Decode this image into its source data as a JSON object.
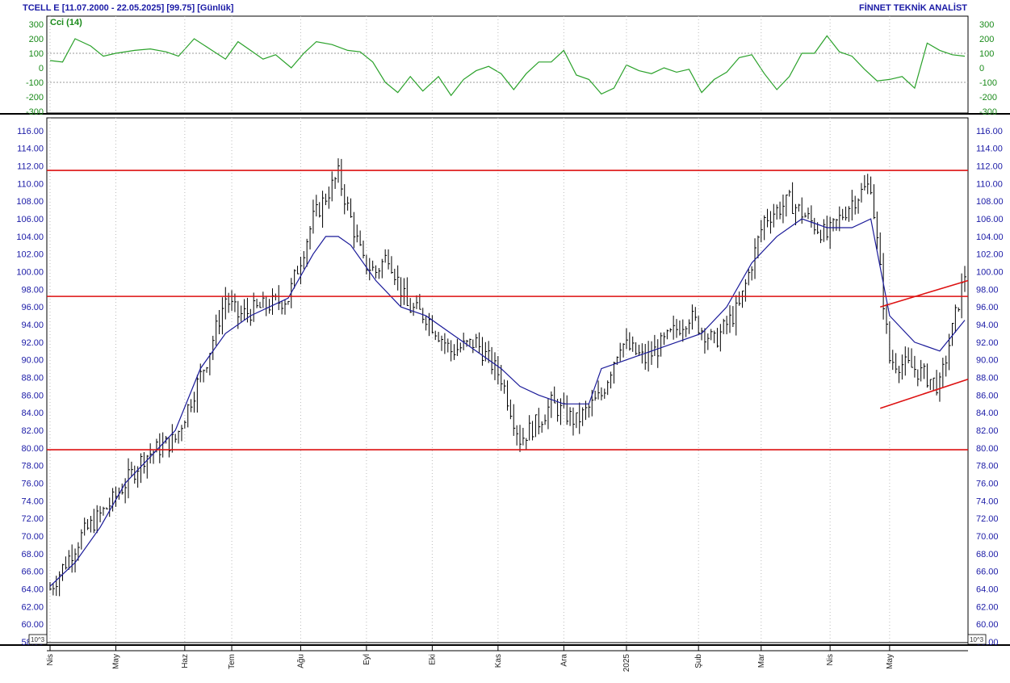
{
  "header": {
    "left": "TCELL E  [11.07.2000 - 22.05.2025]  [99.75]  [Günlük]",
    "right": "FİNNET TEKNİK ANALİST"
  },
  "cci_panel": {
    "label": "Cci (14)",
    "ticks": [
      "300",
      "200",
      "100",
      "0",
      "-100",
      "-200",
      "-300"
    ],
    "line_color": "#2aa12a"
  },
  "price_panel": {
    "ticks": [
      "116.00",
      "114.00",
      "112.00",
      "110.00",
      "108.00",
      "106.00",
      "104.00",
      "102.00",
      "100.00",
      "98.00",
      "96.00",
      "94.00",
      "92.00",
      "90.00",
      "88.00",
      "86.00",
      "84.00",
      "82.00",
      "80.00",
      "78.00",
      "76.00",
      "74.00",
      "72.00",
      "70.00",
      "68.00",
      "66.00",
      "64.00",
      "62.00",
      "60.00",
      "58.00"
    ],
    "scale_marker": "10^3"
  },
  "x_axis": {
    "labels": [
      "Nis",
      "May",
      "Haz",
      "Tem",
      "Ağu",
      "Eyl",
      "Eki",
      "Kas",
      "Ara",
      "2025",
      "Şub",
      "Mar",
      "Nis",
      "May"
    ]
  },
  "colors": {
    "price_bars": "#000000",
    "moving_average": "#1a1a99",
    "support_resistance": "#dd1111",
    "grid": "#bbbbbb",
    "text_blue": "#1a1aa6",
    "text_green": "#1a8a1a"
  },
  "chart_data": [
    {
      "type": "line",
      "name": "Cci (14)",
      "ylim": [
        -300,
        300
      ],
      "reference_lines": [
        100,
        -100
      ],
      "x_index": [
        0,
        4,
        8,
        13,
        17,
        21,
        27,
        32,
        37,
        41,
        46,
        51,
        56,
        60,
        64,
        68,
        72,
        77,
        81,
        85,
        90,
        95,
        99,
        103,
        107,
        111,
        115,
        119,
        124,
        128,
        132,
        136,
        140,
        144,
        148,
        152,
        156,
        160,
        164,
        168,
        172,
        176,
        180,
        184,
        188,
        192,
        196,
        200,
        204,
        208,
        212,
        216,
        220,
        224,
        228,
        232,
        236,
        240,
        244,
        248,
        252,
        256,
        260,
        264,
        268,
        272,
        276,
        280,
        284,
        288,
        292
      ],
      "y": [
        50,
        40,
        200,
        150,
        80,
        100,
        120,
        130,
        110,
        80,
        200,
        130,
        60,
        180,
        120,
        60,
        90,
        0,
        100,
        180,
        160,
        120,
        110,
        40,
        -100,
        -170,
        -60,
        -160,
        -60,
        -190,
        -80,
        -20,
        10,
        -40,
        -150,
        -40,
        40,
        40,
        120,
        -50,
        -80,
        -180,
        -140,
        20,
        -20,
        -40,
        0,
        -30,
        -10,
        -170,
        -80,
        -30,
        70,
        90,
        -40,
        -150,
        -60,
        100,
        100,
        220,
        110,
        80,
        -10,
        -90,
        -80,
        -60,
        -140,
        170,
        120,
        90,
        80
      ]
    },
    {
      "type": "bar",
      "name": "TCELL E",
      "ylim": [
        58,
        117
      ],
      "index_range": [
        0,
        292
      ],
      "close_anchor_index": [
        0,
        10,
        20,
        30,
        40,
        50,
        56,
        60,
        68,
        76,
        84,
        92,
        100,
        104,
        108,
        114,
        120,
        128,
        136,
        144,
        150,
        156,
        160,
        168,
        176,
        182,
        190,
        196,
        204,
        212,
        220,
        228,
        236,
        242,
        248,
        256,
        262,
        268,
        276,
        284,
        292
      ],
      "close_anchor_value": [
        64,
        70,
        74,
        79,
        81,
        90,
        97,
        95,
        96,
        97,
        106,
        111,
        101,
        100,
        102,
        96,
        95,
        91,
        92,
        88,
        81,
        83,
        85,
        83,
        86,
        92,
        90,
        92,
        95,
        92,
        96,
        106,
        108,
        106,
        104,
        108,
        110,
        90,
        89,
        87,
        99.75
      ],
      "moving_average": {
        "period": 20,
        "x_index": [
          0,
          8,
          16,
          24,
          32,
          40,
          48,
          56,
          64,
          70,
          76,
          84,
          88,
          92,
          96,
          104,
          112,
          120,
          128,
          136,
          144,
          150,
          156,
          164,
          172,
          176,
          184,
          192,
          200,
          208,
          216,
          224,
          232,
          240,
          248,
          256,
          262,
          268,
          276,
          284,
          292
        ],
        "y": [
          64.3,
          67,
          71,
          76,
          79,
          82,
          89,
          93,
          95,
          96,
          97,
          102,
          104,
          104,
          103,
          99,
          96,
          95,
          93,
          91,
          89,
          87,
          86,
          85,
          85,
          89,
          90,
          91,
          92,
          93,
          96,
          101,
          104,
          106,
          105,
          105,
          106,
          95,
          92,
          91,
          94.5
        ]
      },
      "horizontal_lines": [
        111.5,
        97.2,
        79.8
      ],
      "channel_lines": [
        {
          "x_index": [
            265,
            292
          ],
          "y": [
            96.0,
            99.0
          ]
        },
        {
          "x_index": [
            265,
            292
          ],
          "y": [
            84.5,
            87.8
          ]
        }
      ]
    }
  ]
}
